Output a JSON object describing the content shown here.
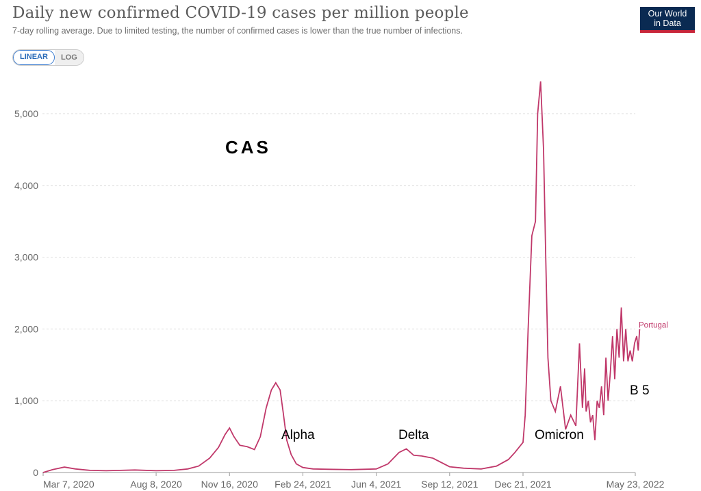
{
  "header": {
    "title": "Daily new confirmed COVID-19 cases per million people",
    "subtitle": "7-day rolling average. Due to limited testing, the number of confirmed cases is lower than the true number of infections.",
    "logo_line1": "Our World",
    "logo_line2": "in Data"
  },
  "scale_toggle": {
    "linear_label": "LINEAR",
    "log_label": "LOG",
    "selected": "LINEAR"
  },
  "colors": {
    "series": "#c0386a",
    "grid": "#dddddd",
    "axis_text": "#666666",
    "logo_bg": "#0a2a52",
    "logo_stripe": "#c8263a"
  },
  "annotations": {
    "cas": "CAS",
    "alpha": "Alpha",
    "delta": "Delta",
    "omicron": "Omicron",
    "b5": "B 5"
  },
  "chart_data": {
    "type": "line",
    "title": "Daily new confirmed COVID-19 cases per million people",
    "xlabel": "",
    "ylabel": "",
    "ylim": [
      0,
      5500
    ],
    "yticks": [
      0,
      1000,
      2000,
      3000,
      4000,
      5000
    ],
    "ytick_labels": [
      "0",
      "1,000",
      "2,000",
      "3,000",
      "4,000",
      "5,000"
    ],
    "xtick_labels": [
      "Mar 7, 2020",
      "Aug 8, 2020",
      "Nov 16, 2020",
      "Feb 24, 2021",
      "Jun 4, 2021",
      "Sep 12, 2021",
      "Dec 21, 2021",
      "May 23, 2022"
    ],
    "xtick_dates": [
      "2020-03-07",
      "2020-08-08",
      "2020-11-16",
      "2021-02-24",
      "2021-06-04",
      "2021-09-12",
      "2021-12-21",
      "2022-05-23"
    ],
    "grid": true,
    "series": [
      {
        "name": "Portugal",
        "x": [
          "2020-03-07",
          "2020-03-20",
          "2020-04-05",
          "2020-04-20",
          "2020-05-10",
          "2020-06-01",
          "2020-06-20",
          "2020-07-10",
          "2020-08-08",
          "2020-09-01",
          "2020-09-20",
          "2020-10-05",
          "2020-10-20",
          "2020-11-01",
          "2020-11-10",
          "2020-11-16",
          "2020-11-22",
          "2020-11-30",
          "2020-12-10",
          "2020-12-20",
          "2020-12-28",
          "2021-01-05",
          "2021-01-12",
          "2021-01-18",
          "2021-01-24",
          "2021-01-28",
          "2021-02-02",
          "2021-02-08",
          "2021-02-15",
          "2021-02-24",
          "2021-03-10",
          "2021-04-01",
          "2021-05-01",
          "2021-06-04",
          "2021-06-20",
          "2021-07-05",
          "2021-07-15",
          "2021-07-25",
          "2021-08-05",
          "2021-08-20",
          "2021-09-12",
          "2021-10-01",
          "2021-10-25",
          "2021-11-15",
          "2021-12-01",
          "2021-12-10",
          "2021-12-21",
          "2021-12-24",
          "2021-12-28",
          "2022-01-02",
          "2022-01-07",
          "2022-01-10",
          "2022-01-14",
          "2022-01-18",
          "2022-01-21",
          "2022-01-24",
          "2022-01-28",
          "2022-02-03",
          "2022-02-10",
          "2022-02-17",
          "2022-02-24",
          "2022-03-03",
          "2022-03-08",
          "2022-03-12",
          "2022-03-15",
          "2022-03-17",
          "2022-03-20",
          "2022-03-23",
          "2022-03-26",
          "2022-03-29",
          "2022-04-01",
          "2022-04-04",
          "2022-04-07",
          "2022-04-10",
          "2022-04-13",
          "2022-04-16",
          "2022-04-19",
          "2022-04-22",
          "2022-04-25",
          "2022-04-28",
          "2022-05-01",
          "2022-05-04",
          "2022-05-07",
          "2022-05-10",
          "2022-05-13",
          "2022-05-16",
          "2022-05-19",
          "2022-05-22",
          "2022-05-25",
          "2022-05-27",
          "2022-05-29"
        ],
        "values": [
          0,
          40,
          75,
          50,
          30,
          25,
          30,
          35,
          25,
          30,
          50,
          90,
          200,
          350,
          530,
          620,
          500,
          380,
          360,
          320,
          500,
          900,
          1150,
          1250,
          1150,
          850,
          450,
          250,
          120,
          70,
          50,
          45,
          40,
          50,
          120,
          280,
          330,
          240,
          230,
          200,
          80,
          60,
          50,
          90,
          180,
          280,
          420,
          800,
          2000,
          3300,
          3500,
          5000,
          5450,
          4500,
          3000,
          1600,
          1000,
          850,
          1200,
          600,
          800,
          650,
          1800,
          900,
          1450,
          850,
          1000,
          700,
          800,
          450,
          1000,
          900,
          1200,
          800,
          1600,
          1000,
          1400,
          1900,
          1300,
          2000,
          1600,
          2300,
          1550,
          2000,
          1550,
          1700,
          1550,
          1800,
          1900,
          1700,
          2000
        ]
      }
    ]
  }
}
